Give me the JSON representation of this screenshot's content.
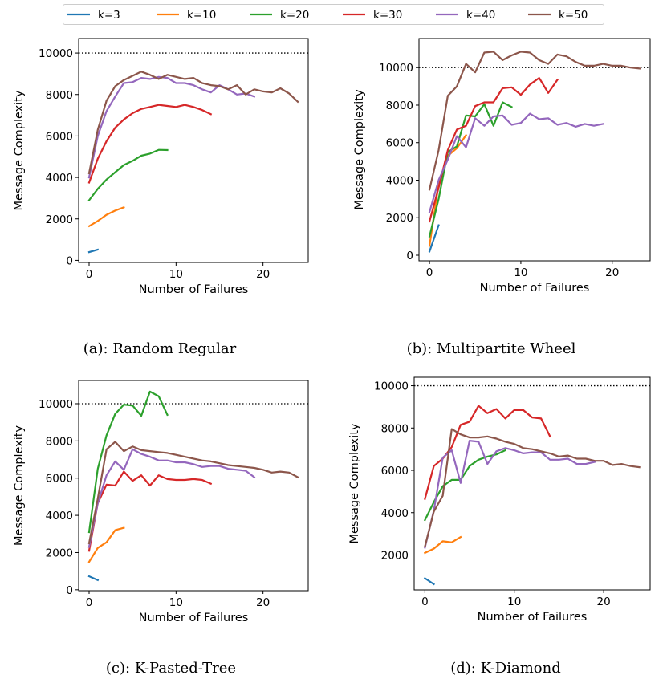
{
  "legend": [
    {
      "label": "k=3",
      "color": "#1f77b4"
    },
    {
      "label": "k=10",
      "color": "#ff7f0e"
    },
    {
      "label": "k=20",
      "color": "#2ca02c"
    },
    {
      "label": "k=30",
      "color": "#d62728"
    },
    {
      "label": "k=40",
      "color": "#9467bd"
    },
    {
      "label": "k=50",
      "color": "#8c564b"
    }
  ],
  "chart_data": [
    {
      "type": "line",
      "caption": "(a): Random Regular",
      "xlabel": "Number of Failures",
      "ylabel": "Message Complexity",
      "xlim": [
        -1.2,
        25.2
      ],
      "ylim": [
        -100,
        10700
      ],
      "xticks": [
        0,
        10,
        20
      ],
      "yticks": [
        0,
        2000,
        4000,
        6000,
        8000,
        10000
      ],
      "reference_line": 10000,
      "series": [
        {
          "name": "k=3",
          "color": "#1f77b4",
          "x": [
            0,
            1
          ],
          "y": [
            400,
            520
          ]
        },
        {
          "name": "k=10",
          "color": "#ff7f0e",
          "x": [
            0,
            1,
            2,
            3,
            4
          ],
          "y": [
            1650,
            1900,
            2200,
            2400,
            2560
          ]
        },
        {
          "name": "k=20",
          "color": "#2ca02c",
          "x": [
            0,
            1,
            2,
            3,
            4,
            5,
            6,
            7,
            8,
            9
          ],
          "y": [
            2900,
            3450,
            3900,
            4250,
            4600,
            4800,
            5050,
            5150,
            5330,
            5320
          ]
        },
        {
          "name": "k=30",
          "color": "#d62728",
          "x": [
            0,
            1,
            2,
            3,
            4,
            5,
            6,
            7,
            8,
            9,
            10,
            11,
            12,
            13,
            14
          ],
          "y": [
            3750,
            4900,
            5750,
            6400,
            6800,
            7100,
            7300,
            7400,
            7500,
            7450,
            7400,
            7500,
            7400,
            7250,
            7050
          ]
        },
        {
          "name": "k=40",
          "color": "#9467bd",
          "x": [
            0,
            1,
            2,
            3,
            4,
            5,
            6,
            7,
            8,
            9,
            10,
            11,
            12,
            13,
            14,
            15,
            16,
            17,
            18,
            19
          ],
          "y": [
            4000,
            6000,
            7200,
            7900,
            8550,
            8600,
            8800,
            8750,
            8850,
            8800,
            8550,
            8550,
            8450,
            8250,
            8100,
            8450,
            8250,
            8000,
            8050,
            7900
          ]
        },
        {
          "name": "k=50",
          "color": "#8c564b",
          "x": [
            0,
            1,
            2,
            3,
            4,
            5,
            6,
            7,
            8,
            9,
            10,
            11,
            12,
            13,
            14,
            15,
            16,
            17,
            18,
            19,
            20,
            21,
            22,
            23,
            24
          ],
          "y": [
            4200,
            6300,
            7700,
            8400,
            8700,
            8900,
            9100,
            8950,
            8750,
            8950,
            8850,
            8750,
            8800,
            8550,
            8450,
            8400,
            8250,
            8450,
            8000,
            8250,
            8150,
            8100,
            8300,
            8050,
            7650
          ]
        }
      ]
    },
    {
      "type": "line",
      "caption": "(b): Multipartite Wheel",
      "xlabel": "Number of Failures",
      "ylabel": "Message Complexity",
      "xlim": [
        -1.15,
        24.15
      ],
      "ylim": [
        -300,
        11550
      ],
      "xticks": [
        0,
        10,
        20
      ],
      "yticks": [
        0,
        2000,
        4000,
        6000,
        8000,
        10000
      ],
      "reference_line": 10000,
      "series": [
        {
          "name": "k=3",
          "color": "#1f77b4",
          "x": [
            0,
            1
          ],
          "y": [
            200,
            1600
          ]
        },
        {
          "name": "k=10",
          "color": "#ff7f0e",
          "x": [
            0,
            1,
            2,
            3,
            4
          ],
          "y": [
            500,
            3800,
            5300,
            5700,
            6400
          ]
        },
        {
          "name": "k=20",
          "color": "#2ca02c",
          "x": [
            0,
            1,
            2,
            3,
            4,
            5,
            6,
            7,
            8,
            9
          ],
          "y": [
            1000,
            3000,
            5500,
            5800,
            7450,
            7400,
            8050,
            6900,
            8150,
            7900
          ]
        },
        {
          "name": "k=30",
          "color": "#d62728",
          "x": [
            0,
            1,
            2,
            3,
            4,
            5,
            6,
            7,
            8,
            9,
            10,
            11,
            12,
            13,
            14
          ],
          "y": [
            1800,
            3600,
            5600,
            6700,
            6900,
            7950,
            8150,
            8150,
            8900,
            8950,
            8550,
            9100,
            9450,
            8650,
            9350
          ]
        },
        {
          "name": "k=40",
          "color": "#9467bd",
          "x": [
            0,
            1,
            2,
            3,
            4,
            5,
            6,
            7,
            8,
            9,
            10,
            11,
            12,
            13,
            14,
            15,
            16,
            17,
            18,
            19
          ],
          "y": [
            2300,
            4000,
            5100,
            6350,
            5750,
            7300,
            6900,
            7400,
            7450,
            6950,
            7050,
            7550,
            7250,
            7300,
            6950,
            7050,
            6850,
            7000,
            6900,
            7000
          ]
        },
        {
          "name": "k=50",
          "color": "#8c564b",
          "x": [
            0,
            1,
            2,
            3,
            4,
            5,
            6,
            7,
            8,
            9,
            10,
            11,
            12,
            13,
            14,
            15,
            16,
            17,
            18,
            19,
            20,
            21,
            22,
            23
          ],
          "y": [
            3500,
            5600,
            8500,
            9000,
            10200,
            9750,
            10800,
            10850,
            10400,
            10650,
            10850,
            10800,
            10400,
            10200,
            10700,
            10600,
            10300,
            10100,
            10100,
            10200,
            10100,
            10100,
            10000,
            9950
          ]
        }
      ]
    },
    {
      "type": "line",
      "caption": "(c): K-Pasted-Tree",
      "xlabel": "Number of Failures",
      "ylabel": "Message Complexity",
      "xlim": [
        -1.2,
        25.2
      ],
      "ylim": [
        -50,
        11250
      ],
      "xticks": [
        0,
        10,
        20
      ],
      "yticks": [
        0,
        2000,
        4000,
        6000,
        8000,
        10000
      ],
      "reference_line": 10000,
      "series": [
        {
          "name": "k=3",
          "color": "#1f77b4",
          "x": [
            0,
            1
          ],
          "y": [
            720,
            520
          ]
        },
        {
          "name": "k=10",
          "color": "#ff7f0e",
          "x": [
            0,
            1,
            2,
            3,
            4
          ],
          "y": [
            1500,
            2250,
            2550,
            3200,
            3330
          ]
        },
        {
          "name": "k=20",
          "color": "#2ca02c",
          "x": [
            0,
            1,
            2,
            3,
            4,
            5,
            6,
            7,
            8,
            9
          ],
          "y": [
            3100,
            6500,
            8300,
            9450,
            9950,
            9900,
            9350,
            10650,
            10400,
            9400
          ]
        },
        {
          "name": "k=30",
          "color": "#d62728",
          "x": [
            0,
            1,
            2,
            3,
            4,
            5,
            6,
            7,
            8,
            9,
            10,
            11,
            12,
            13,
            14
          ],
          "y": [
            2100,
            4650,
            5650,
            5600,
            6350,
            5850,
            6150,
            5600,
            6150,
            5950,
            5900,
            5900,
            5950,
            5900,
            5700
          ]
        },
        {
          "name": "k=40",
          "color": "#9467bd",
          "x": [
            0,
            1,
            2,
            3,
            4,
            5,
            6,
            7,
            8,
            9,
            10,
            11,
            12,
            13,
            14,
            15,
            16,
            17,
            18,
            19
          ],
          "y": [
            2300,
            4650,
            6150,
            6900,
            6450,
            7550,
            7300,
            7150,
            6950,
            6950,
            6850,
            6850,
            6750,
            6600,
            6650,
            6650,
            6500,
            6450,
            6400,
            6050
          ]
        },
        {
          "name": "k=50",
          "color": "#8c564b",
          "x": [
            0,
            1,
            2,
            3,
            4,
            5,
            6,
            7,
            8,
            9,
            10,
            11,
            12,
            13,
            14,
            15,
            16,
            17,
            18,
            19,
            20,
            21,
            22,
            23,
            24
          ],
          "y": [
            2500,
            4900,
            7550,
            7950,
            7450,
            7700,
            7500,
            7450,
            7400,
            7350,
            7250,
            7150,
            7050,
            6950,
            6900,
            6800,
            6700,
            6650,
            6600,
            6550,
            6450,
            6300,
            6350,
            6300,
            6050
          ]
        }
      ]
    },
    {
      "type": "line",
      "caption": "(d): K-Diamond",
      "xlabel": "Number of Failures",
      "ylabel": "Message Complexity",
      "xlim": [
        -1.2,
        25.2
      ],
      "ylim": [
        350,
        10400
      ],
      "xticks": [
        0,
        10,
        20
      ],
      "yticks": [
        2000,
        4000,
        6000,
        8000,
        10000
      ],
      "reference_line": 10000,
      "series": [
        {
          "name": "k=3",
          "color": "#1f77b4",
          "x": [
            0,
            1
          ],
          "y": [
            900,
            620
          ]
        },
        {
          "name": "k=10",
          "color": "#ff7f0e",
          "x": [
            0,
            1,
            2,
            3,
            4
          ],
          "y": [
            2100,
            2300,
            2650,
            2600,
            2850
          ]
        },
        {
          "name": "k=20",
          "color": "#2ca02c",
          "x": [
            0,
            1,
            2,
            3,
            4,
            5,
            6,
            7,
            8,
            9
          ],
          "y": [
            3650,
            4500,
            5250,
            5550,
            5550,
            6200,
            6500,
            6650,
            6750,
            6950
          ]
        },
        {
          "name": "k=30",
          "color": "#d62728",
          "x": [
            0,
            1,
            2,
            3,
            4,
            5,
            6,
            7,
            8,
            9,
            10,
            11,
            12,
            13,
            14
          ],
          "y": [
            4650,
            6200,
            6550,
            7100,
            8150,
            8300,
            9050,
            8700,
            8900,
            8450,
            8850,
            8850,
            8500,
            8450,
            7600
          ]
        },
        {
          "name": "k=40",
          "color": "#9467bd",
          "x": [
            0,
            1,
            2,
            3,
            4,
            5,
            6,
            7,
            8,
            9,
            10,
            11,
            12,
            13,
            14,
            15,
            16,
            17,
            18,
            19
          ],
          "y": [
            2350,
            4100,
            6600,
            6950,
            5400,
            7400,
            7350,
            6300,
            6900,
            7050,
            6950,
            6800,
            6850,
            6850,
            6500,
            6500,
            6550,
            6300,
            6300,
            6400
          ]
        },
        {
          "name": "k=50",
          "color": "#8c564b",
          "x": [
            0,
            1,
            2,
            3,
            4,
            5,
            6,
            7,
            8,
            9,
            10,
            11,
            12,
            13,
            14,
            15,
            16,
            17,
            18,
            19,
            20,
            21,
            22,
            23,
            24
          ],
          "y": [
            2400,
            4050,
            4800,
            7950,
            7700,
            7550,
            7550,
            7600,
            7500,
            7350,
            7250,
            7050,
            7000,
            6900,
            6800,
            6650,
            6700,
            6550,
            6550,
            6450,
            6450,
            6250,
            6300,
            6200,
            6150
          ]
        }
      ]
    }
  ]
}
